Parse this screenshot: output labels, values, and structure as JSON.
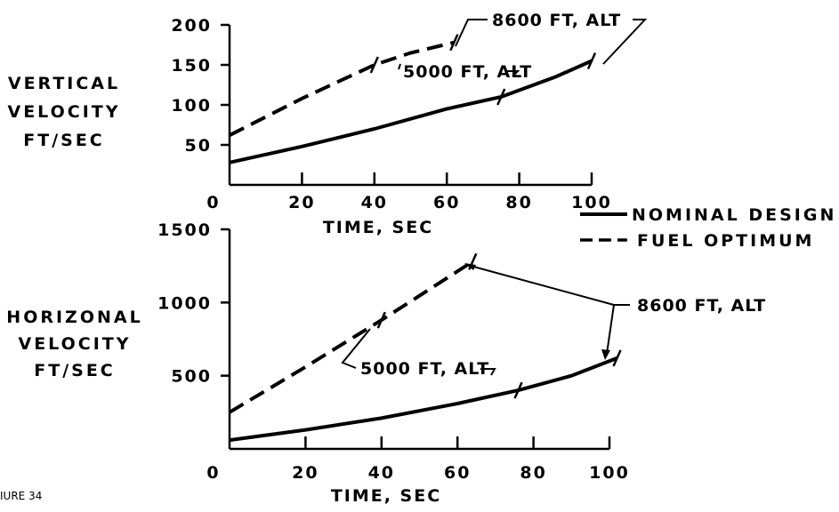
{
  "figure_label": "IURE 34",
  "legend": {
    "nominal": "NOMINAL DESIGN",
    "fuel": "FUEL OPTIMUM"
  },
  "chart_data": [
    {
      "type": "line",
      "ylabel": [
        "VERTICAL",
        "VELOCITY",
        "FT/SEC"
      ],
      "xlabel": "TIME, SEC",
      "x_ticks": [
        0,
        20,
        40,
        60,
        80,
        100
      ],
      "x_tick_labels": [
        "0",
        "20",
        "40",
        "60",
        "80",
        "100"
      ],
      "y_ticks": [
        50,
        100,
        150,
        200
      ],
      "y_tick_labels": [
        "50",
        "100",
        "150",
        "200"
      ],
      "xlim": [
        0,
        100
      ],
      "ylim": [
        0,
        200
      ],
      "grid": false,
      "series": [
        {
          "name": "NOMINAL DESIGN",
          "style": "solid",
          "x": [
            0,
            20,
            40,
            60,
            75,
            90,
            100
          ],
          "y": [
            28,
            48,
            70,
            95,
            110,
            135,
            155
          ]
        },
        {
          "name": "FUEL OPTIMUM",
          "style": "dashed",
          "x": [
            0,
            20,
            40,
            50,
            62
          ],
          "y": [
            62,
            108,
            150,
            165,
            178
          ]
        }
      ],
      "annotations": [
        {
          "text": "8600 FT, ALT",
          "points_to": [
            [
              62,
              178
            ],
            [
              100,
              155
            ]
          ]
        },
        {
          "text": "5000 FT, ALT",
          "points_to": [
            [
              40,
              150
            ],
            [
              75,
              110
            ]
          ]
        }
      ]
    },
    {
      "type": "line",
      "ylabel": [
        "HORIZONAL",
        "VELOCITY",
        "FT/SEC"
      ],
      "xlabel": "TIME, SEC",
      "x_ticks": [
        0,
        20,
        40,
        60,
        80,
        100
      ],
      "x_tick_labels": [
        "0",
        "20",
        "40",
        "60",
        "80",
        "100"
      ],
      "y_ticks": [
        500,
        1000,
        1500
      ],
      "y_tick_labels": [
        "500",
        "1000",
        "1500"
      ],
      "xlim": [
        0,
        100
      ],
      "ylim": [
        0,
        1500
      ],
      "grid": false,
      "series": [
        {
          "name": "NOMINAL DESIGN",
          "style": "solid",
          "x": [
            0,
            20,
            40,
            60,
            76,
            90,
            102
          ],
          "y": [
            60,
            130,
            210,
            310,
            400,
            500,
            620
          ]
        },
        {
          "name": "FUEL OPTIMUM",
          "style": "dashed",
          "x": [
            0,
            20,
            40,
            64
          ],
          "y": [
            250,
            560,
            880,
            1280
          ]
        }
      ],
      "annotations": [
        {
          "text": "8600 FT, ALT",
          "points_to": [
            [
              64,
              1280
            ],
            [
              102,
              620
            ]
          ]
        },
        {
          "text": "5000 FT, ALT",
          "points_to": [
            [
              40,
              880
            ],
            [
              76,
              400
            ]
          ]
        }
      ]
    }
  ]
}
